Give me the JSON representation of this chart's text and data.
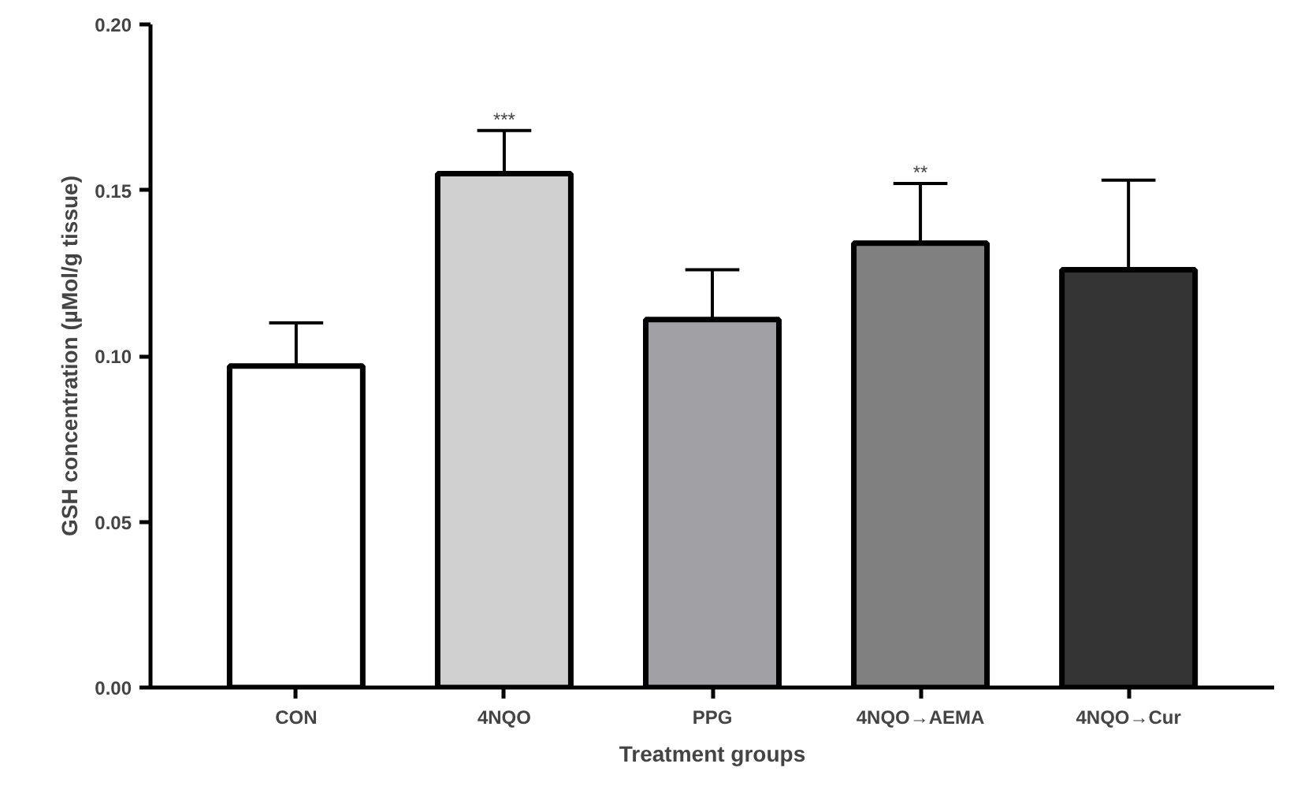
{
  "chart_data": {
    "type": "bar",
    "xlabel": "Treatment groups",
    "ylabel": "GSH concentration (µMol/g tissue)",
    "categories": [
      "CON",
      "4NQO",
      "PPG",
      "4NQO→AEMA",
      "4NQO→Cur"
    ],
    "values": [
      0.097,
      0.155,
      0.111,
      0.134,
      0.126
    ],
    "errors": [
      [
        0.097,
        0.11
      ],
      [
        0.155,
        0.168
      ],
      [
        0.111,
        0.126
      ],
      [
        0.134,
        0.152
      ],
      [
        0.126,
        0.153
      ]
    ],
    "colors": [
      "#ffffff",
      "#d0d0d0",
      "#a1a0a5",
      "#808080",
      "#333333"
    ],
    "value_labels": [
      null,
      "***",
      null,
      "**",
      null
    ],
    "ylim": [
      0,
      0.2
    ],
    "yticks": [
      {
        "value": 0,
        "label": "0.00"
      },
      {
        "value": 0.05,
        "label": "0.05"
      },
      {
        "value": 0.1,
        "label": "0.10"
      },
      {
        "value": 0.15,
        "label": "0.15"
      },
      {
        "value": 0.2,
        "label": "0.20"
      }
    ],
    "grid": false
  }
}
